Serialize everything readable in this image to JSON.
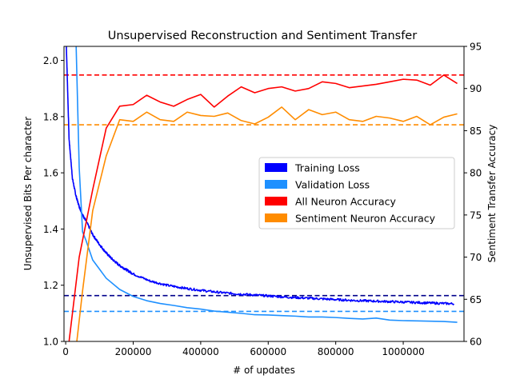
{
  "chart_data": {
    "type": "line",
    "title": "Unsupervised Reconstruction and Sentiment Transfer",
    "xlabel": "# of updates",
    "ylabel_left": "Unsupervised Bits Per character",
    "ylabel_right": "Sentiment Transfer Accuracy",
    "xlim": [
      -5000,
      1180000
    ],
    "ylim_left": [
      1.0,
      2.05
    ],
    "ylim_right": [
      60,
      95
    ],
    "x_ticks": [
      0,
      200000,
      400000,
      600000,
      800000,
      1000000
    ],
    "x_tick_labels": [
      "0",
      "200000",
      "400000",
      "600000",
      "800000",
      "1000000"
    ],
    "y_left_ticks": [
      1.0,
      1.2,
      1.4,
      1.6,
      1.8,
      2.0
    ],
    "y_left_tick_labels": [
      "1.0",
      "1.2",
      "1.4",
      "1.6",
      "1.8",
      "2.0"
    ],
    "y_right_ticks": [
      60,
      65,
      70,
      75,
      80,
      85,
      90,
      95
    ],
    "y_right_tick_labels": [
      "60",
      "65",
      "70",
      "75",
      "80",
      "85",
      "90",
      "95"
    ],
    "legend_position": "center-right",
    "series": [
      {
        "name": "Training Loss",
        "axis": "left",
        "color": "#0000ff",
        "noisy": true,
        "x": [
          2000,
          10000,
          20000,
          30000,
          40000,
          50000,
          60000,
          80000,
          100000,
          120000,
          140000,
          160000,
          180000,
          200000,
          250000,
          300000,
          350000,
          400000,
          450000,
          500000,
          550000,
          600000,
          650000,
          700000,
          750000,
          800000,
          850000,
          900000,
          950000,
          1000000,
          1050000,
          1100000,
          1150000
        ],
        "values": [
          2.05,
          1.72,
          1.58,
          1.52,
          1.48,
          1.45,
          1.43,
          1.38,
          1.345,
          1.315,
          1.29,
          1.27,
          1.255,
          1.24,
          1.215,
          1.2,
          1.19,
          1.182,
          1.175,
          1.17,
          1.166,
          1.162,
          1.158,
          1.155,
          1.152,
          1.149,
          1.146,
          1.144,
          1.142,
          1.14,
          1.138,
          1.136,
          1.134
        ]
      },
      {
        "name": "Validation Loss",
        "axis": "left",
        "color": "#1e90ff",
        "x": [
          31000,
          40000,
          50000,
          60000,
          80000,
          120000,
          160000,
          200000,
          240000,
          280000,
          320000,
          360000,
          400000,
          440000,
          480000,
          520000,
          560000,
          600000,
          640000,
          680000,
          720000,
          760000,
          800000,
          840000,
          880000,
          920000,
          960000,
          1000000,
          1040000,
          1080000,
          1120000,
          1160000
        ],
        "values": [
          2.05,
          1.62,
          1.39,
          1.36,
          1.29,
          1.225,
          1.185,
          1.16,
          1.145,
          1.135,
          1.128,
          1.12,
          1.115,
          1.108,
          1.104,
          1.1,
          1.095,
          1.094,
          1.092,
          1.09,
          1.087,
          1.087,
          1.085,
          1.082,
          1.08,
          1.083,
          1.076,
          1.074,
          1.073,
          1.072,
          1.071,
          1.068
        ]
      },
      {
        "name": "All Neuron Accuracy",
        "axis": "right",
        "color": "#ff0000",
        "x": [
          10000,
          40000,
          80000,
          120000,
          160000,
          200000,
          240000,
          280000,
          320000,
          360000,
          400000,
          440000,
          480000,
          520000,
          560000,
          600000,
          640000,
          680000,
          720000,
          760000,
          800000,
          840000,
          880000,
          920000,
          960000,
          1000000,
          1040000,
          1080000,
          1120000,
          1160000
        ],
        "values": [
          60,
          70,
          78,
          85.3,
          87.9,
          88.1,
          89.2,
          88.4,
          87.9,
          88.7,
          89.3,
          87.8,
          89.1,
          90.2,
          89.5,
          90,
          90.2,
          89.7,
          90,
          90.8,
          90.6,
          90.1,
          90.3,
          90.5,
          90.8,
          91.1,
          91,
          90.4,
          91.6,
          90.6
        ]
      },
      {
        "name": "Sentiment Neuron Accuracy",
        "axis": "right",
        "color": "#ff8c00",
        "x": [
          33000,
          50000,
          80000,
          120000,
          160000,
          200000,
          240000,
          280000,
          320000,
          360000,
          400000,
          440000,
          480000,
          520000,
          560000,
          600000,
          640000,
          680000,
          720000,
          760000,
          800000,
          840000,
          880000,
          920000,
          960000,
          1000000,
          1040000,
          1080000,
          1120000,
          1160000
        ],
        "values": [
          60,
          66,
          75.5,
          82,
          86.3,
          86.1,
          87.2,
          86.3,
          86.1,
          87.2,
          86.8,
          86.7,
          87.1,
          86.2,
          85.8,
          86.6,
          87.8,
          86.3,
          87.5,
          86.9,
          87.2,
          86.3,
          86.1,
          86.7,
          86.5,
          86.1,
          86.7,
          85.7,
          86.6,
          87
        ]
      }
    ],
    "reference_lines": [
      {
        "axis": "right",
        "value": 91.6,
        "color": "#ff0000",
        "style": "dashed"
      },
      {
        "axis": "right",
        "value": 85.7,
        "color": "#ff8c00",
        "style": "dashed"
      },
      {
        "axis": "left",
        "value": 1.163,
        "color": "#00008b",
        "style": "dashed"
      },
      {
        "axis": "left",
        "value": 1.107,
        "color": "#1e90ff",
        "style": "dashed"
      }
    ]
  }
}
